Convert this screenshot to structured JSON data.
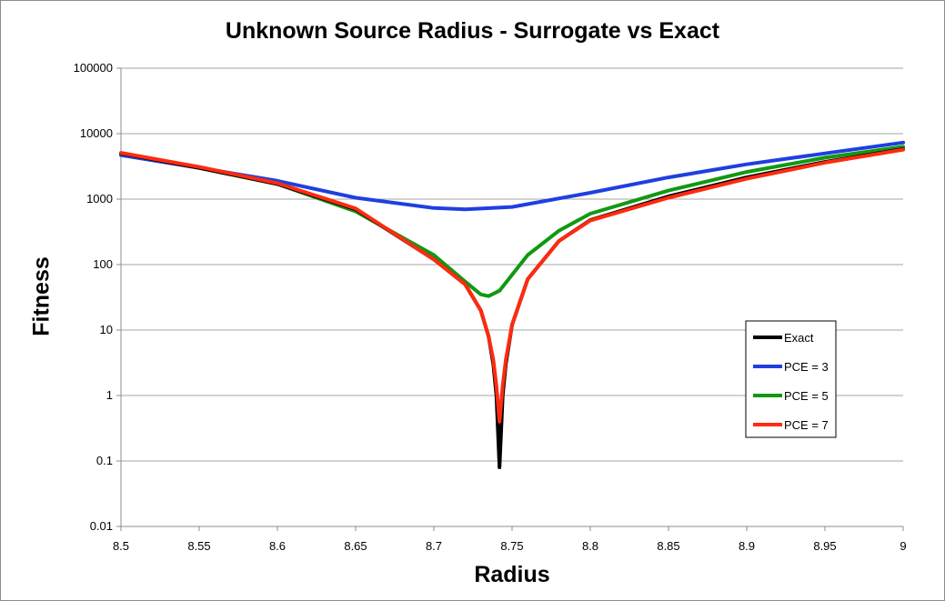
{
  "chart_data": {
    "type": "line",
    "title": "Unknown Source Radius - Surrogate vs Exact",
    "xlabel": "Radius",
    "ylabel": "Fitness",
    "xlim": [
      8.5,
      9
    ],
    "ylim": [
      0.01,
      100000
    ],
    "yscale": "log",
    "grid": true,
    "legend_position": "right",
    "x_ticks": [
      "8.5",
      "8.55",
      "8.6",
      "8.65",
      "8.7",
      "8.75",
      "8.8",
      "8.85",
      "8.9",
      "8.95",
      "9"
    ],
    "y_ticks": [
      "0.01",
      "0.1",
      "1",
      "10",
      "100",
      "1000",
      "10000",
      "100000"
    ],
    "series": [
      {
        "name": "Exact",
        "color": "#000000",
        "x": [
          8.5,
          8.55,
          8.6,
          8.65,
          8.7,
          8.72,
          8.73,
          8.735,
          8.738,
          8.74,
          8.742,
          8.744,
          8.746,
          8.75,
          8.76,
          8.78,
          8.8,
          8.85,
          8.9,
          8.95,
          9.0
        ],
        "y": [
          5000,
          3000,
          1700,
          700,
          120,
          50,
          20,
          8,
          3,
          1,
          0.08,
          1,
          3,
          12,
          60,
          230,
          480,
          1100,
          2150,
          3700,
          5800
        ]
      },
      {
        "name": "PCE = 3",
        "color": "#1f3fe0",
        "x": [
          8.5,
          8.55,
          8.6,
          8.65,
          8.7,
          8.72,
          8.75,
          8.8,
          8.85,
          8.9,
          8.95,
          9.0
        ],
        "y": [
          4700,
          3000,
          1900,
          1050,
          730,
          700,
          760,
          1250,
          2150,
          3400,
          5000,
          7300
        ]
      },
      {
        "name": "PCE = 5",
        "color": "#119911",
        "x": [
          8.5,
          8.55,
          8.6,
          8.65,
          8.7,
          8.72,
          8.73,
          8.735,
          8.742,
          8.75,
          8.76,
          8.78,
          8.8,
          8.85,
          8.9,
          8.95,
          9.0
        ],
        "y": [
          5000,
          3000,
          1700,
          650,
          140,
          55,
          35,
          33,
          40,
          70,
          140,
          330,
          600,
          1350,
          2600,
          4300,
          6300
        ]
      },
      {
        "name": "PCE = 7",
        "color": "#ff2a10",
        "x": [
          8.5,
          8.55,
          8.6,
          8.65,
          8.7,
          8.72,
          8.73,
          8.735,
          8.738,
          8.74,
          8.742,
          8.744,
          8.746,
          8.75,
          8.76,
          8.78,
          8.8,
          8.85,
          8.9,
          8.95,
          9.0
        ],
        "y": [
          5100,
          3100,
          1750,
          720,
          120,
          50,
          20,
          8,
          3.5,
          1.4,
          0.4,
          1.4,
          3.5,
          12,
          60,
          230,
          470,
          1050,
          2050,
          3600,
          5700
        ]
      }
    ]
  }
}
